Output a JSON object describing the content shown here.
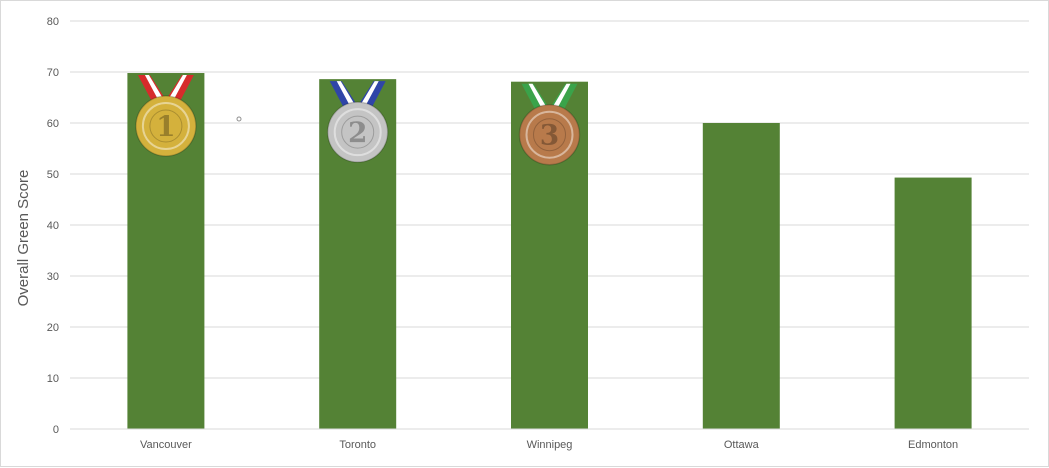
{
  "chart_data": {
    "type": "bar",
    "categories": [
      "Vancouver",
      "Toronto",
      "Winnipeg",
      "Ottawa",
      "Edmonton"
    ],
    "values": [
      69.8,
      68.6,
      68.1,
      60.0,
      49.3
    ],
    "xlabel": "",
    "ylabel": "Overall Green Score",
    "ylim": [
      0,
      80
    ],
    "yticks": [
      0,
      10,
      20,
      30,
      40,
      50,
      60,
      70,
      80
    ],
    "grid": true,
    "legend": "none",
    "bar_color": "#548235",
    "gridline_color": "#d9d9d9",
    "medals": [
      {
        "category": "Vancouver",
        "rank": "1",
        "metal": "gold",
        "ribbon_color": "#d62b2b",
        "coin_color": "#d4b13c"
      },
      {
        "category": "Toronto",
        "rank": "2",
        "metal": "silver",
        "ribbon_color": "#2f45a8",
        "coin_color": "#c4c4c4"
      },
      {
        "category": "Winnipeg",
        "rank": "3",
        "metal": "bronze",
        "ribbon_color": "#3aa34a",
        "coin_color": "#b87a4b"
      }
    ]
  }
}
